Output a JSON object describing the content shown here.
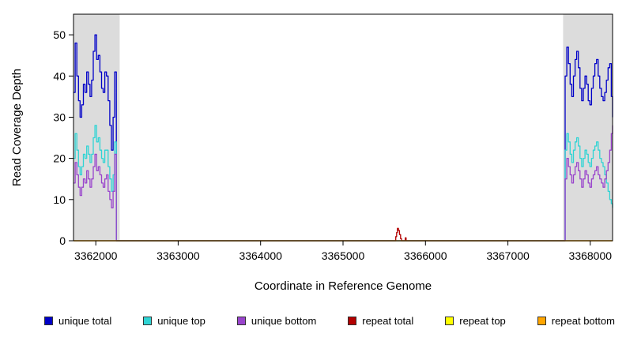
{
  "chart_data": {
    "type": "line",
    "title": "",
    "xlabel": "Coordinate in Reference Genome",
    "ylabel": "Read Coverage Depth",
    "xlim": [
      3361730,
      3368270
    ],
    "ylim": [
      0,
      55
    ],
    "xticks": [
      3362000,
      3363000,
      3364000,
      3365000,
      3366000,
      3367000,
      3368000
    ],
    "yticks": [
      0,
      10,
      20,
      30,
      40,
      50
    ],
    "grid": false,
    "legend_position": "bottom",
    "shade_color": "#DCDCDC",
    "shaded_regions": [
      [
        3361730,
        3362290
      ],
      [
        3367670,
        3368270
      ]
    ],
    "series": [
      {
        "name": "unique total",
        "color": "#0000C8",
        "points": [
          [
            3361730,
            36
          ],
          [
            3361750,
            48
          ],
          [
            3361770,
            40
          ],
          [
            3361790,
            34
          ],
          [
            3361810,
            30
          ],
          [
            3361830,
            33
          ],
          [
            3361850,
            38
          ],
          [
            3361870,
            36
          ],
          [
            3361890,
            41
          ],
          [
            3361910,
            38
          ],
          [
            3361930,
            35
          ],
          [
            3361950,
            39
          ],
          [
            3361970,
            46
          ],
          [
            3361990,
            50
          ],
          [
            3362010,
            44
          ],
          [
            3362030,
            45
          ],
          [
            3362050,
            41
          ],
          [
            3362070,
            37
          ],
          [
            3362090,
            36
          ],
          [
            3362110,
            41
          ],
          [
            3362130,
            40
          ],
          [
            3362150,
            34
          ],
          [
            3362170,
            28
          ],
          [
            3362190,
            22
          ],
          [
            3362210,
            30
          ],
          [
            3362230,
            41
          ],
          [
            3362250,
            0
          ],
          [
            3367675,
            0
          ],
          [
            3367695,
            40
          ],
          [
            3367715,
            47
          ],
          [
            3367735,
            43
          ],
          [
            3367755,
            38
          ],
          [
            3367775,
            35
          ],
          [
            3367795,
            40
          ],
          [
            3367815,
            44
          ],
          [
            3367835,
            46
          ],
          [
            3367855,
            42
          ],
          [
            3367875,
            37
          ],
          [
            3367895,
            34
          ],
          [
            3367915,
            37
          ],
          [
            3367935,
            40
          ],
          [
            3367955,
            38
          ],
          [
            3367975,
            34
          ],
          [
            3367995,
            33
          ],
          [
            3368015,
            37
          ],
          [
            3368035,
            40
          ],
          [
            3368055,
            43
          ],
          [
            3368075,
            44
          ],
          [
            3368095,
            40
          ],
          [
            3368115,
            37
          ],
          [
            3368135,
            35
          ],
          [
            3368155,
            34
          ],
          [
            3368175,
            36
          ],
          [
            3368195,
            39
          ],
          [
            3368215,
            42
          ],
          [
            3368235,
            43
          ],
          [
            3368255,
            35
          ],
          [
            3368270,
            30
          ]
        ]
      },
      {
        "name": "unique top",
        "color": "#2FD4D4",
        "points": [
          [
            3361730,
            20
          ],
          [
            3361750,
            26
          ],
          [
            3361770,
            22
          ],
          [
            3361790,
            18
          ],
          [
            3361810,
            16
          ],
          [
            3361830,
            18
          ],
          [
            3361850,
            21
          ],
          [
            3361870,
            20
          ],
          [
            3361890,
            23
          ],
          [
            3361910,
            21
          ],
          [
            3361930,
            19
          ],
          [
            3361950,
            21
          ],
          [
            3361970,
            25
          ],
          [
            3361990,
            28
          ],
          [
            3362010,
            24
          ],
          [
            3362030,
            25
          ],
          [
            3362050,
            22
          ],
          [
            3362070,
            20
          ],
          [
            3362090,
            19
          ],
          [
            3362110,
            22
          ],
          [
            3362130,
            22
          ],
          [
            3362150,
            18
          ],
          [
            3362170,
            15
          ],
          [
            3362190,
            12
          ],
          [
            3362210,
            16
          ],
          [
            3362230,
            24
          ],
          [
            3362250,
            0
          ],
          [
            3367675,
            0
          ],
          [
            3367695,
            22
          ],
          [
            3367715,
            26
          ],
          [
            3367735,
            24
          ],
          [
            3367755,
            21
          ],
          [
            3367775,
            19
          ],
          [
            3367795,
            22
          ],
          [
            3367815,
            24
          ],
          [
            3367835,
            25
          ],
          [
            3367855,
            23
          ],
          [
            3367875,
            20
          ],
          [
            3367895,
            18
          ],
          [
            3367915,
            20
          ],
          [
            3367935,
            22
          ],
          [
            3367955,
            21
          ],
          [
            3367975,
            19
          ],
          [
            3367995,
            18
          ],
          [
            3368015,
            20
          ],
          [
            3368035,
            22
          ],
          [
            3368055,
            23
          ],
          [
            3368075,
            24
          ],
          [
            3368095,
            22
          ],
          [
            3368115,
            20
          ],
          [
            3368135,
            19
          ],
          [
            3368155,
            18
          ],
          [
            3368175,
            16
          ],
          [
            3368195,
            14
          ],
          [
            3368215,
            12
          ],
          [
            3368235,
            10
          ],
          [
            3368255,
            9
          ],
          [
            3368270,
            8
          ]
        ]
      },
      {
        "name": "unique bottom",
        "color": "#9944CC",
        "points": [
          [
            3361730,
            14
          ],
          [
            3361750,
            19
          ],
          [
            3361770,
            16
          ],
          [
            3361790,
            13
          ],
          [
            3361810,
            11
          ],
          [
            3361830,
            13
          ],
          [
            3361850,
            15
          ],
          [
            3361870,
            14
          ],
          [
            3361890,
            17
          ],
          [
            3361910,
            15
          ],
          [
            3361930,
            13
          ],
          [
            3361950,
            15
          ],
          [
            3361970,
            18
          ],
          [
            3361990,
            21
          ],
          [
            3362010,
            17
          ],
          [
            3362030,
            18
          ],
          [
            3362050,
            16
          ],
          [
            3362070,
            14
          ],
          [
            3362090,
            13
          ],
          [
            3362110,
            15
          ],
          [
            3362130,
            16
          ],
          [
            3362150,
            12
          ],
          [
            3362170,
            10
          ],
          [
            3362190,
            8
          ],
          [
            3362210,
            12
          ],
          [
            3362230,
            21
          ],
          [
            3362250,
            0
          ],
          [
            3367675,
            0
          ],
          [
            3367695,
            15
          ],
          [
            3367715,
            20
          ],
          [
            3367735,
            18
          ],
          [
            3367755,
            16
          ],
          [
            3367775,
            14
          ],
          [
            3367795,
            16
          ],
          [
            3367815,
            18
          ],
          [
            3367835,
            19
          ],
          [
            3367855,
            17
          ],
          [
            3367875,
            15
          ],
          [
            3367895,
            13
          ],
          [
            3367915,
            15
          ],
          [
            3367935,
            17
          ],
          [
            3367955,
            16
          ],
          [
            3367975,
            14
          ],
          [
            3367995,
            13
          ],
          [
            3368015,
            15
          ],
          [
            3368035,
            16
          ],
          [
            3368055,
            17
          ],
          [
            3368075,
            18
          ],
          [
            3368095,
            16
          ],
          [
            3368115,
            15
          ],
          [
            3368135,
            14
          ],
          [
            3368155,
            13
          ],
          [
            3368175,
            15
          ],
          [
            3368195,
            17
          ],
          [
            3368215,
            19
          ],
          [
            3368235,
            22
          ],
          [
            3368255,
            26
          ],
          [
            3368270,
            28
          ]
        ]
      },
      {
        "name": "repeat total",
        "color": "#B30000",
        "points": [
          [
            3361730,
            0
          ],
          [
            3365620,
            0
          ],
          [
            3365640,
            1
          ],
          [
            3365650,
            2
          ],
          [
            3365660,
            3
          ],
          [
            3365672,
            2.5
          ],
          [
            3365685,
            1.5
          ],
          [
            3365698,
            0.5
          ],
          [
            3365710,
            0
          ],
          [
            3365745,
            0
          ],
          [
            3365755,
            0.7
          ],
          [
            3365765,
            0
          ],
          [
            3368270,
            0
          ]
        ]
      },
      {
        "name": "repeat top",
        "color": "#FFFF00",
        "points": [
          [
            3361730,
            0
          ],
          [
            3368270,
            0
          ]
        ]
      },
      {
        "name": "repeat bottom",
        "color": "#FFA500",
        "points": [
          [
            3361730,
            0
          ],
          [
            3368270,
            0
          ]
        ]
      }
    ]
  }
}
